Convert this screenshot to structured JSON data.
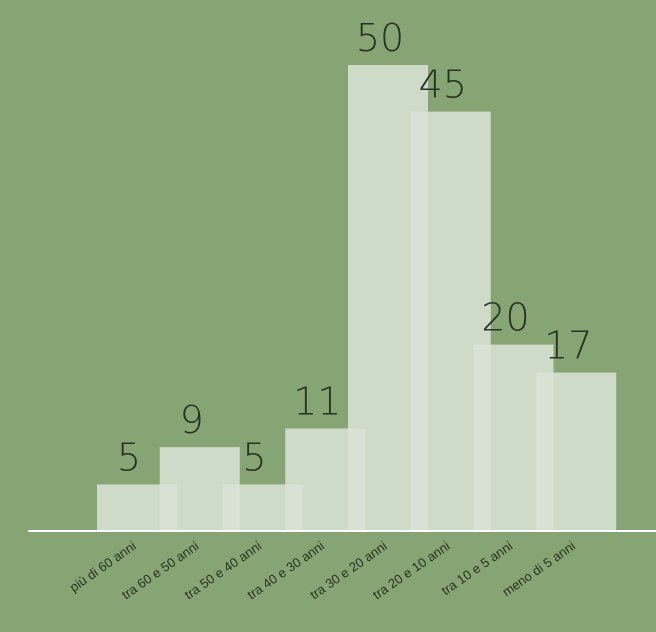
{
  "chart_data": {
    "type": "bar",
    "categories": [
      "più di 60 anni",
      "tra 60 e 50 anni",
      "tra 50 e 40 anni",
      "tra 40 e 30 anni",
      "tra 30 e 20 anni",
      "tra 20 e 10 anni",
      "tra 10 e 5 anni",
      "meno di 5 anni"
    ],
    "values": [
      5,
      9,
      5,
      11,
      50,
      45,
      20,
      17
    ],
    "value_labels": [
      "5",
      "9",
      "5",
      "11",
      "50",
      "45",
      "20",
      "17"
    ],
    "title": "",
    "xlabel": "",
    "ylabel": "",
    "ylim": [
      0,
      50
    ],
    "grid": false,
    "legend": "none",
    "colors": {
      "background": "#87a474",
      "bar": "#d9e3d5",
      "axis": "#ffffff",
      "text": "#263322"
    }
  }
}
